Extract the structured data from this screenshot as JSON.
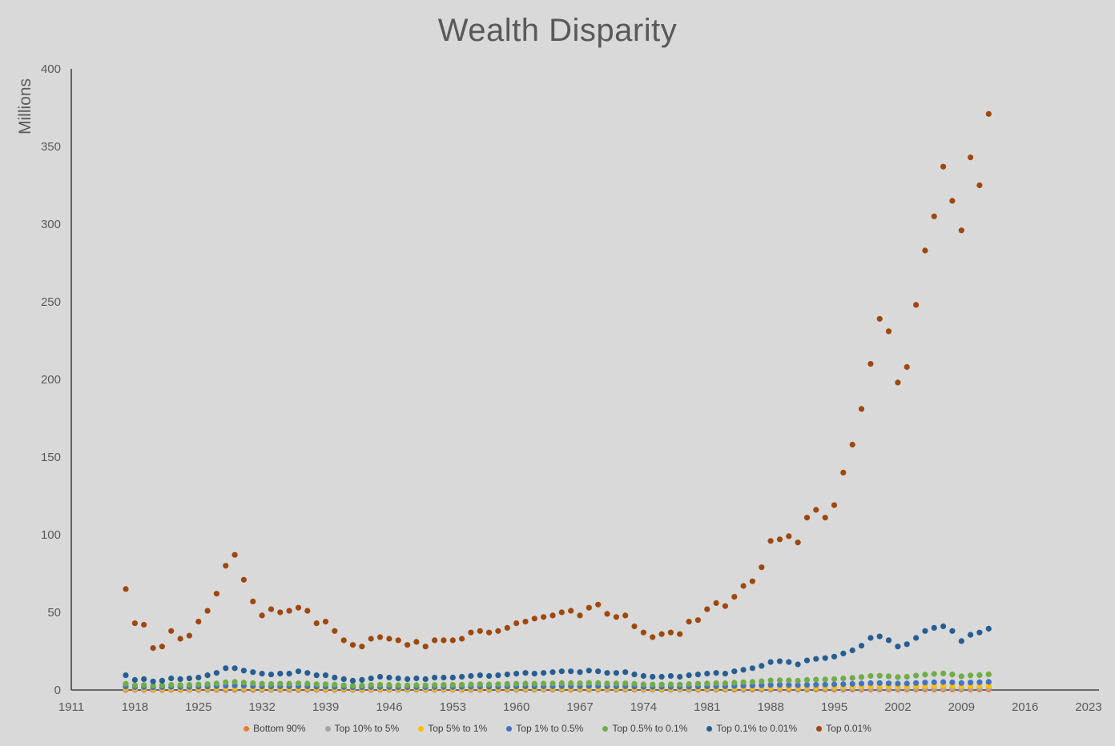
{
  "title": "Wealth Disparity",
  "chart_data": {
    "type": "scatter",
    "title": "Wealth Disparity",
    "ylabel": "Millions",
    "xlabel": "",
    "grid": false,
    "legend_position": "bottom",
    "xlim": [
      1911,
      2023
    ],
    "ylim": [
      0,
      400
    ],
    "x_ticks": [
      1911,
      1918,
      1925,
      1932,
      1939,
      1946,
      1953,
      1960,
      1967,
      1974,
      1981,
      1988,
      1995,
      2002,
      2009,
      2016,
      2023
    ],
    "y_ticks": [
      0,
      50,
      100,
      150,
      200,
      250,
      300,
      350,
      400
    ],
    "years": [
      1917,
      1918,
      1919,
      1920,
      1921,
      1922,
      1923,
      1924,
      1925,
      1926,
      1927,
      1928,
      1929,
      1930,
      1931,
      1932,
      1933,
      1934,
      1935,
      1936,
      1937,
      1938,
      1939,
      1940,
      1941,
      1942,
      1943,
      1944,
      1945,
      1946,
      1947,
      1948,
      1949,
      1950,
      1951,
      1952,
      1953,
      1954,
      1955,
      1956,
      1957,
      1958,
      1959,
      1960,
      1961,
      1962,
      1963,
      1964,
      1965,
      1966,
      1967,
      1968,
      1969,
      1970,
      1971,
      1972,
      1973,
      1974,
      1975,
      1976,
      1977,
      1978,
      1979,
      1980,
      1981,
      1982,
      1983,
      1984,
      1985,
      1986,
      1987,
      1988,
      1989,
      1990,
      1991,
      1992,
      1993,
      1994,
      1995,
      1996,
      1997,
      1998,
      1999,
      2000,
      2001,
      2002,
      2003,
      2004,
      2005,
      2006,
      2007,
      2008,
      2009,
      2010,
      2011,
      2012
    ],
    "series": [
      {
        "name": "Bottom 90%",
        "color": "#ED7D31",
        "values": [
          0.05,
          0.05,
          0.05,
          0.04,
          0.04,
          0.05,
          0.05,
          0.05,
          0.05,
          0.06,
          0.06,
          0.07,
          0.07,
          0.06,
          0.06,
          0.05,
          0.05,
          0.05,
          0.05,
          0.06,
          0.06,
          0.05,
          0.06,
          0.06,
          0.06,
          0.06,
          0.07,
          0.07,
          0.08,
          0.08,
          0.08,
          0.08,
          0.08,
          0.09,
          0.09,
          0.09,
          0.1,
          0.1,
          0.1,
          0.11,
          0.11,
          0.11,
          0.12,
          0.12,
          0.12,
          0.13,
          0.13,
          0.13,
          0.14,
          0.14,
          0.14,
          0.15,
          0.15,
          0.15,
          0.15,
          0.16,
          0.15,
          0.14,
          0.14,
          0.15,
          0.15,
          0.15,
          0.15,
          0.15,
          0.16,
          0.16,
          0.16,
          0.17,
          0.17,
          0.18,
          0.18,
          0.19,
          0.19,
          0.19,
          0.19,
          0.2,
          0.2,
          0.2,
          0.21,
          0.21,
          0.22,
          0.23,
          0.24,
          0.25,
          0.24,
          0.23,
          0.23,
          0.25,
          0.26,
          0.27,
          0.28,
          0.26,
          0.24,
          0.25,
          0.26,
          0.27
        ]
      },
      {
        "name": "Top 10% to 5%",
        "color": "#A5A5A5",
        "values": [
          0.6,
          0.5,
          0.5,
          0.5,
          0.5,
          0.5,
          0.5,
          0.5,
          0.6,
          0.6,
          0.6,
          0.7,
          0.7,
          0.7,
          0.6,
          0.6,
          0.6,
          0.6,
          0.6,
          0.6,
          0.6,
          0.6,
          0.6,
          0.5,
          0.5,
          0.5,
          0.5,
          0.5,
          0.6,
          0.5,
          0.5,
          0.5,
          0.5,
          0.5,
          0.5,
          0.5,
          0.5,
          0.6,
          0.6,
          0.6,
          0.6,
          0.6,
          0.6,
          0.6,
          0.6,
          0.6,
          0.6,
          0.7,
          0.7,
          0.7,
          0.7,
          0.7,
          0.7,
          0.7,
          0.7,
          0.7,
          0.6,
          0.6,
          0.6,
          0.6,
          0.6,
          0.6,
          0.6,
          0.7,
          0.7,
          0.7,
          0.7,
          0.7,
          0.8,
          0.8,
          0.8,
          0.9,
          0.9,
          0.9,
          0.9,
          0.9,
          0.9,
          1,
          1,
          1,
          1,
          1.1,
          1.1,
          1.2,
          1.1,
          1.1,
          1.1,
          1.2,
          1.2,
          1.2,
          1.3,
          1.2,
          1.2,
          1.2,
          1.2,
          1.3
        ]
      },
      {
        "name": "Top 5% to 1%",
        "color": "#FFC000",
        "values": [
          1.2,
          1,
          1,
          0.9,
          1,
          1.1,
          1,
          1.1,
          1.1,
          1.2,
          1.3,
          1.4,
          1.5,
          1.4,
          1.3,
          1.2,
          1.2,
          1.2,
          1.2,
          1.3,
          1.2,
          1.1,
          1.1,
          1.1,
          1,
          0.9,
          0.9,
          1,
          1.1,
          1,
          1,
          1,
          1,
          1,
          1,
          1,
          1,
          1.1,
          1.1,
          1.1,
          1.1,
          1.1,
          1.2,
          1.2,
          1.2,
          1.2,
          1.2,
          1.3,
          1.3,
          1.3,
          1.3,
          1.4,
          1.3,
          1.3,
          1.3,
          1.3,
          1.2,
          1.1,
          1.1,
          1.1,
          1.1,
          1.1,
          1.2,
          1.2,
          1.3,
          1.3,
          1.3,
          1.4,
          1.5,
          1.5,
          1.6,
          1.7,
          1.8,
          1.7,
          1.7,
          1.8,
          1.8,
          1.9,
          1.9,
          2,
          2.1,
          2.2,
          2.3,
          2.4,
          2.3,
          2.2,
          2.2,
          2.4,
          2.5,
          2.6,
          2.7,
          2.6,
          2.4,
          2.5,
          2.6,
          2.7
        ]
      },
      {
        "name": "Top 1% to 0.5%",
        "color": "#4472C4",
        "values": [
          2.2,
          1.8,
          1.9,
          1.7,
          1.8,
          2,
          1.9,
          2,
          2.1,
          2.2,
          2.4,
          2.8,
          2.9,
          2.7,
          2.5,
          2.3,
          2.2,
          2.3,
          2.3,
          2.4,
          2.3,
          2.1,
          2.1,
          2,
          1.8,
          1.7,
          1.7,
          1.9,
          2,
          1.9,
          1.8,
          1.8,
          1.8,
          1.8,
          1.9,
          1.9,
          1.9,
          2,
          2.1,
          2.1,
          2.1,
          2.1,
          2.2,
          2.2,
          2.3,
          2.2,
          2.3,
          2.3,
          2.4,
          2.4,
          2.4,
          2.5,
          2.5,
          2.3,
          2.3,
          2.4,
          2.2,
          2,
          2,
          2,
          2,
          2,
          2.1,
          2.2,
          2.3,
          2.4,
          2.4,
          2.6,
          2.7,
          2.8,
          3,
          3.2,
          3.3,
          3.2,
          3.1,
          3.3,
          3.4,
          3.5,
          3.6,
          3.7,
          3.9,
          4.1,
          4.4,
          4.5,
          4.3,
          4.1,
          4.2,
          4.5,
          4.8,
          5,
          5.1,
          4.9,
          4.5,
          4.8,
          5,
          5.2
        ]
      },
      {
        "name": "Top 0.5% to 0.1%",
        "color": "#70AD47",
        "values": [
          4,
          3,
          3.2,
          2.8,
          3,
          3.3,
          3.2,
          3.3,
          3.5,
          3.8,
          4.2,
          5,
          5.2,
          4.8,
          4.4,
          4,
          3.9,
          4,
          4,
          4.3,
          4.1,
          3.7,
          3.7,
          3.4,
          3,
          2.8,
          2.9,
          3.2,
          3.4,
          3.3,
          3.1,
          3,
          3.1,
          3,
          3.2,
          3.3,
          3.3,
          3.4,
          3.6,
          3.7,
          3.6,
          3.7,
          3.9,
          4,
          4.1,
          4,
          4.1,
          4.2,
          4.4,
          4.4,
          4.3,
          4.6,
          4.5,
          4.2,
          4.2,
          4.3,
          3.9,
          3.6,
          3.5,
          3.5,
          3.6,
          3.5,
          3.8,
          4,
          4.2,
          4.4,
          4.3,
          4.7,
          5,
          5.2,
          5.6,
          6.2,
          6.3,
          6.2,
          6,
          6.5,
          6.7,
          6.8,
          7,
          7.4,
          7.8,
          8.3,
          9,
          9.2,
          8.8,
          8.3,
          8.5,
          9.3,
          9.9,
          10.3,
          10.6,
          10,
          8.8,
          9.4,
          9.6,
          10.1
        ]
      },
      {
        "name": "Top 0.1% to 0.01%",
        "color": "#255E91",
        "values": [
          9.5,
          6.5,
          7,
          5.5,
          6,
          7.5,
          7,
          7.5,
          8,
          9.5,
          11,
          14,
          14,
          12.5,
          11.5,
          10.5,
          10,
          10.5,
          10.5,
          12,
          11,
          9.5,
          9.5,
          8,
          7,
          6,
          6.5,
          7.5,
          8.5,
          8,
          7.5,
          7,
          7.5,
          7,
          8,
          8,
          8,
          8.5,
          9,
          9.5,
          9,
          9.5,
          10,
          10.5,
          11,
          10.5,
          11,
          11.5,
          12,
          12,
          11.5,
          12.5,
          12,
          11,
          11,
          11.5,
          10,
          9,
          8.5,
          8.5,
          9,
          8.5,
          9.5,
          10,
          10.5,
          11,
          10.5,
          12,
          13,
          14,
          15.5,
          18,
          18.5,
          18,
          16.5,
          19,
          20,
          20.5,
          21.5,
          23.5,
          25.5,
          28.5,
          33.5,
          34.5,
          32,
          28,
          29.5,
          33.5,
          38,
          40,
          41,
          38,
          31.5,
          35.5,
          37,
          39.5
        ]
      },
      {
        "name": "Top 0.01%",
        "color": "#9E480E",
        "values": [
          65,
          43,
          42,
          27,
          28,
          38,
          33,
          35,
          44,
          51,
          62,
          80,
          87,
          71,
          57,
          48,
          52,
          50,
          51,
          53,
          51,
          43,
          44,
          38,
          32,
          29,
          28,
          33,
          34,
          33,
          32,
          29,
          31,
          28,
          32,
          32,
          32,
          33,
          37,
          38,
          37,
          38,
          40,
          43,
          44,
          46,
          47,
          48,
          50,
          51,
          48,
          53,
          55,
          49,
          47,
          48,
          41,
          37,
          34,
          36,
          37,
          36,
          44,
          45,
          52,
          56,
          54,
          60,
          67,
          70,
          79,
          96,
          97,
          99,
          95,
          111,
          116,
          111,
          119,
          140,
          158,
          181,
          210,
          239,
          231,
          198,
          208,
          248,
          283,
          305,
          337,
          315,
          296,
          343,
          325,
          371
        ]
      }
    ]
  }
}
